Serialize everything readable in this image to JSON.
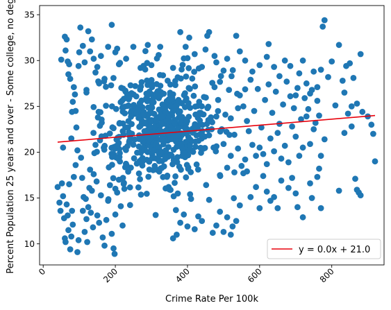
{
  "chart_data": {
    "type": "scatter",
    "title": "",
    "xlabel": "Crime Rate Per 100k",
    "ylabel": "Percent Population 25 years and over - Some college, no deg",
    "xlim": [
      -10,
      945
    ],
    "ylim": [
      7.7,
      36.0
    ],
    "x_ticks": [
      0,
      200,
      400,
      600,
      800
    ],
    "y_ticks": [
      10,
      15,
      20,
      25,
      30,
      35
    ],
    "x_tick_rotation": 45,
    "grid": false,
    "legend_position": "bottom-right",
    "point_color": "#1f77b4",
    "trend_line": {
      "label": "y = 0.0x + 21.0",
      "color": "#e8000b",
      "x": [
        40,
        920
      ],
      "y": [
        21.1,
        24.0
      ]
    },
    "cluster_points": {
      "count": 560,
      "seed": 97,
      "x_range": [
        120,
        560
      ],
      "x_mean": 320,
      "x_sd": 85,
      "y_mean": 22.6,
      "y_sd": 3.2
    },
    "points": [
      [
        40,
        16.2
      ],
      [
        45,
        14.5
      ],
      [
        48,
        13.6
      ],
      [
        52,
        16.6
      ],
      [
        55,
        15.2
      ],
      [
        58,
        12.8
      ],
      [
        60,
        10.6
      ],
      [
        62,
        10.2
      ],
      [
        65,
        14.3
      ],
      [
        68,
        13.1
      ],
      [
        70,
        11.5
      ],
      [
        72,
        16.5
      ],
      [
        75,
        9.4
      ],
      [
        78,
        10.8
      ],
      [
        80,
        13.6
      ],
      [
        82,
        12.1
      ],
      [
        85,
        17.3
      ],
      [
        90,
        18.6
      ],
      [
        95,
        9.1
      ],
      [
        98,
        10.4
      ],
      [
        50,
        30.1
      ],
      [
        55,
        20.5
      ],
      [
        60,
        32.6
      ],
      [
        62,
        31.1
      ],
      [
        65,
        32.3
      ],
      [
        68,
        29.9
      ],
      [
        70,
        28.5
      ],
      [
        72,
        29.6
      ],
      [
        75,
        28.0
      ],
      [
        78,
        21.5
      ],
      [
        80,
        24.4
      ],
      [
        82,
        25.5
      ],
      [
        85,
        27.1
      ],
      [
        88,
        26.3
      ],
      [
        90,
        24.5
      ],
      [
        92,
        22.7
      ],
      [
        95,
        20.2
      ],
      [
        98,
        29.4
      ],
      [
        100,
        30.9
      ],
      [
        103,
        33.6
      ],
      [
        105,
        19.4
      ],
      [
        108,
        17.2
      ],
      [
        110,
        13.6
      ],
      [
        112,
        15.1
      ],
      [
        115,
        11.3
      ],
      [
        118,
        14.9
      ],
      [
        120,
        12.7
      ],
      [
        122,
        10.2
      ],
      [
        125,
        14.0
      ],
      [
        128,
        16.1
      ],
      [
        130,
        18.1
      ],
      [
        132,
        13.4
      ],
      [
        135,
        15.8
      ],
      [
        138,
        11.8
      ],
      [
        140,
        17.6
      ],
      [
        142,
        19.9
      ],
      [
        145,
        20.8
      ],
      [
        148,
        16.8
      ],
      [
        150,
        13.1
      ],
      [
        155,
        12.3
      ],
      [
        160,
        15.3
      ],
      [
        165,
        10.7
      ],
      [
        170,
        9.8
      ],
      [
        175,
        12.6
      ],
      [
        180,
        14.7
      ],
      [
        185,
        16.4
      ],
      [
        190,
        11.1
      ],
      [
        195,
        9.5
      ],
      [
        198,
        8.9
      ],
      [
        200,
        13.2
      ],
      [
        205,
        15.6
      ],
      [
        210,
        17.0
      ],
      [
        215,
        14.1
      ],
      [
        220,
        12.0
      ],
      [
        225,
        16.0
      ],
      [
        110,
        31.6
      ],
      [
        115,
        29.8
      ],
      [
        120,
        26.8
      ],
      [
        125,
        33.2
      ],
      [
        130,
        31.0
      ],
      [
        135,
        32.3
      ],
      [
        140,
        30.2
      ],
      [
        145,
        28.7
      ],
      [
        150,
        29.3
      ],
      [
        155,
        27.5
      ],
      [
        160,
        30.5
      ],
      [
        170,
        28.0
      ],
      [
        180,
        31.5
      ],
      [
        190,
        33.9
      ],
      [
        200,
        30.9
      ],
      [
        205,
        31.3
      ],
      [
        210,
        29.6
      ],
      [
        230,
        30.2
      ],
      [
        250,
        31.5
      ],
      [
        270,
        29.2
      ],
      [
        290,
        31.7
      ],
      [
        300,
        29.5
      ],
      [
        320,
        30.6
      ],
      [
        345,
        27.8
      ],
      [
        360,
        29.2
      ],
      [
        380,
        33.1
      ],
      [
        395,
        31.5
      ],
      [
        405,
        32.5
      ],
      [
        420,
        30.7
      ],
      [
        440,
        29.3
      ],
      [
        450,
        31.2
      ],
      [
        455,
        32.7
      ],
      [
        460,
        33.1
      ],
      [
        475,
        30.5
      ],
      [
        480,
        29.8
      ],
      [
        500,
        28.9
      ],
      [
        510,
        30.2
      ],
      [
        535,
        32.7
      ],
      [
        545,
        31.0
      ],
      [
        560,
        30.0
      ],
      [
        580,
        28.8
      ],
      [
        600,
        29.5
      ],
      [
        620,
        30.4
      ],
      [
        625,
        31.8
      ],
      [
        640,
        29.3
      ],
      [
        655,
        28.3
      ],
      [
        670,
        30.0
      ],
      [
        685,
        29.4
      ],
      [
        700,
        26.2
      ],
      [
        710,
        28.6
      ],
      [
        720,
        30.0
      ],
      [
        730,
        27.5
      ],
      [
        740,
        26.4
      ],
      [
        750,
        28.8
      ],
      [
        760,
        27.1
      ],
      [
        770,
        29.0
      ],
      [
        775,
        33.7
      ],
      [
        780,
        34.4
      ],
      [
        790,
        28.2
      ],
      [
        800,
        29.9
      ],
      [
        810,
        25.1
      ],
      [
        820,
        31.7
      ],
      [
        830,
        27.8
      ],
      [
        835,
        26.5
      ],
      [
        840,
        29.4
      ],
      [
        845,
        24.2
      ],
      [
        850,
        29.7
      ],
      [
        855,
        25.0
      ],
      [
        860,
        28.1
      ],
      [
        870,
        25.3
      ],
      [
        880,
        30.7
      ],
      [
        885,
        24.4
      ],
      [
        900,
        23.9
      ],
      [
        910,
        23.0
      ],
      [
        915,
        22.0
      ],
      [
        920,
        19.0
      ],
      [
        865,
        17.1
      ],
      [
        875,
        15.6
      ],
      [
        880,
        15.3
      ],
      [
        870,
        15.9
      ],
      [
        855,
        22.8
      ],
      [
        835,
        22.1
      ],
      [
        820,
        15.8
      ],
      [
        780,
        21.4
      ],
      [
        770,
        19.6
      ],
      [
        765,
        18.2
      ],
      [
        760,
        17.3
      ],
      [
        745,
        15.0
      ],
      [
        770,
        13.9
      ],
      [
        740,
        16.6
      ],
      [
        720,
        12.9
      ],
      [
        705,
        14.0
      ],
      [
        700,
        15.5
      ],
      [
        690,
        17.2
      ],
      [
        680,
        16.1
      ],
      [
        660,
        16.9
      ],
      [
        650,
        13.9
      ],
      [
        640,
        15.1
      ],
      [
        630,
        14.7
      ],
      [
        620,
        15.7
      ],
      [
        610,
        17.4
      ],
      [
        600,
        13.9
      ],
      [
        590,
        16.2
      ],
      [
        575,
        15.1
      ],
      [
        565,
        17.9
      ],
      [
        555,
        17.7
      ],
      [
        545,
        14.2
      ],
      [
        535,
        12.5
      ],
      [
        525,
        11.9
      ],
      [
        520,
        11.0
      ],
      [
        510,
        12.9
      ],
      [
        500,
        11.3
      ],
      [
        490,
        13.5
      ],
      [
        480,
        12.0
      ],
      [
        470,
        11.2
      ],
      [
        460,
        14.8
      ],
      [
        440,
        12.5
      ],
      [
        430,
        13.0
      ],
      [
        420,
        11.6
      ],
      [
        410,
        14.9
      ],
      [
        400,
        11.9
      ],
      [
        390,
        13.2
      ],
      [
        380,
        12.3
      ],
      [
        370,
        11.0
      ],
      [
        360,
        10.6
      ],
      [
        590,
        19.6
      ],
      [
        600,
        20.5
      ],
      [
        610,
        19.8
      ],
      [
        620,
        18.7
      ],
      [
        630,
        21.5
      ],
      [
        640,
        20.1
      ],
      [
        650,
        22.1
      ],
      [
        660,
        19.3
      ],
      [
        670,
        20.7
      ],
      [
        680,
        18.9
      ],
      [
        690,
        22.8
      ],
      [
        700,
        21.7
      ],
      [
        710,
        19.6
      ],
      [
        720,
        20.5
      ],
      [
        730,
        23.9
      ],
      [
        740,
        20.9
      ],
      [
        750,
        22.5
      ],
      [
        760,
        25.6
      ],
      [
        765,
        24.0
      ],
      [
        755,
        23.2
      ],
      [
        745,
        26.8
      ],
      [
        735,
        24.7
      ],
      [
        725,
        25.9
      ],
      [
        715,
        23.6
      ],
      [
        705,
        27.0
      ],
      [
        695,
        24.8
      ],
      [
        685,
        26.1
      ],
      [
        675,
        27.7
      ],
      [
        665,
        25.2
      ],
      [
        655,
        23.1
      ],
      [
        645,
        26.6
      ],
      [
        635,
        24.3
      ],
      [
        625,
        27.4
      ],
      [
        615,
        25.7
      ],
      [
        605,
        22.7
      ],
      [
        595,
        26.9
      ],
      [
        585,
        24.5
      ],
      [
        575,
        27.9
      ],
      [
        565,
        23.4
      ],
      [
        555,
        25.0
      ],
      [
        545,
        26.2
      ],
      [
        540,
        24.8
      ],
      [
        530,
        21.9
      ],
      [
        520,
        23.7
      ],
      [
        515,
        26.8
      ],
      [
        505,
        24.1
      ],
      [
        495,
        22.5
      ],
      [
        485,
        25.7
      ],
      [
        475,
        27.1
      ],
      [
        465,
        23.8
      ],
      [
        580,
        20.8
      ],
      [
        570,
        22.3
      ],
      [
        560,
        19.2
      ],
      [
        550,
        18.5
      ],
      [
        540,
        20.4
      ],
      [
        530,
        17.8
      ],
      [
        520,
        19.6
      ],
      [
        510,
        18.3
      ],
      [
        500,
        20.9
      ],
      [
        490,
        17.5
      ]
    ],
    "series": [
      {
        "name": "y = 0.0x + 21.0",
        "type": "line",
        "x": [
          40,
          920
        ],
        "y": [
          21.1,
          24.0
        ]
      }
    ]
  }
}
